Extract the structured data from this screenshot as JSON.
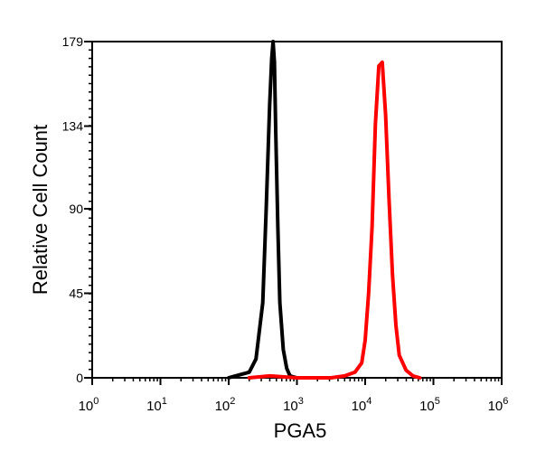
{
  "chart_data": {
    "type": "line",
    "title": "",
    "xlabel": "PGA5",
    "ylabel": "Relative Cell Count",
    "xscale": "log",
    "xlim": [
      1,
      1000000
    ],
    "ylim": [
      0,
      179
    ],
    "grid": false,
    "legend": "none",
    "x_ticks": [
      {
        "value": 1,
        "base": "10",
        "exp": "0"
      },
      {
        "value": 10,
        "base": "10",
        "exp": "1"
      },
      {
        "value": 100,
        "base": "10",
        "exp": "2"
      },
      {
        "value": 1000,
        "base": "10",
        "exp": "3"
      },
      {
        "value": 10000,
        "base": "10",
        "exp": "4"
      },
      {
        "value": 100000,
        "base": "10",
        "exp": "5"
      },
      {
        "value": 1000000,
        "base": "10",
        "exp": "6"
      }
    ],
    "y_ticks": [
      {
        "value": 0,
        "label": "0"
      },
      {
        "value": 45,
        "label": "45"
      },
      {
        "value": 90,
        "label": "90"
      },
      {
        "value": 134,
        "label": "134"
      },
      {
        "value": 179,
        "label": "179"
      }
    ],
    "series": [
      {
        "color": "#000000",
        "x": [
          100,
          200,
          251,
          316,
          355,
          398,
          427,
          447,
          468,
          490,
          525,
          562,
          631,
          708,
          794,
          1000
        ],
        "y": [
          0,
          3,
          10,
          40,
          90,
          145,
          170,
          179,
          168,
          130,
          80,
          40,
          15,
          5,
          1,
          0
        ]
      },
      {
        "color": "#ff0000",
        "x": [
          200,
          400,
          1000,
          3162,
          5012,
          7080,
          8910,
          10000,
          11220,
          12590,
          14130,
          15850,
          17780,
          19950,
          22390,
          25120,
          28180,
          31620,
          39810,
          50120,
          63100
        ],
        "y": [
          0,
          1,
          0,
          0,
          1,
          3,
          8,
          20,
          45,
          80,
          135,
          166,
          168,
          140,
          95,
          55,
          28,
          12,
          4,
          1,
          0
        ]
      }
    ]
  }
}
